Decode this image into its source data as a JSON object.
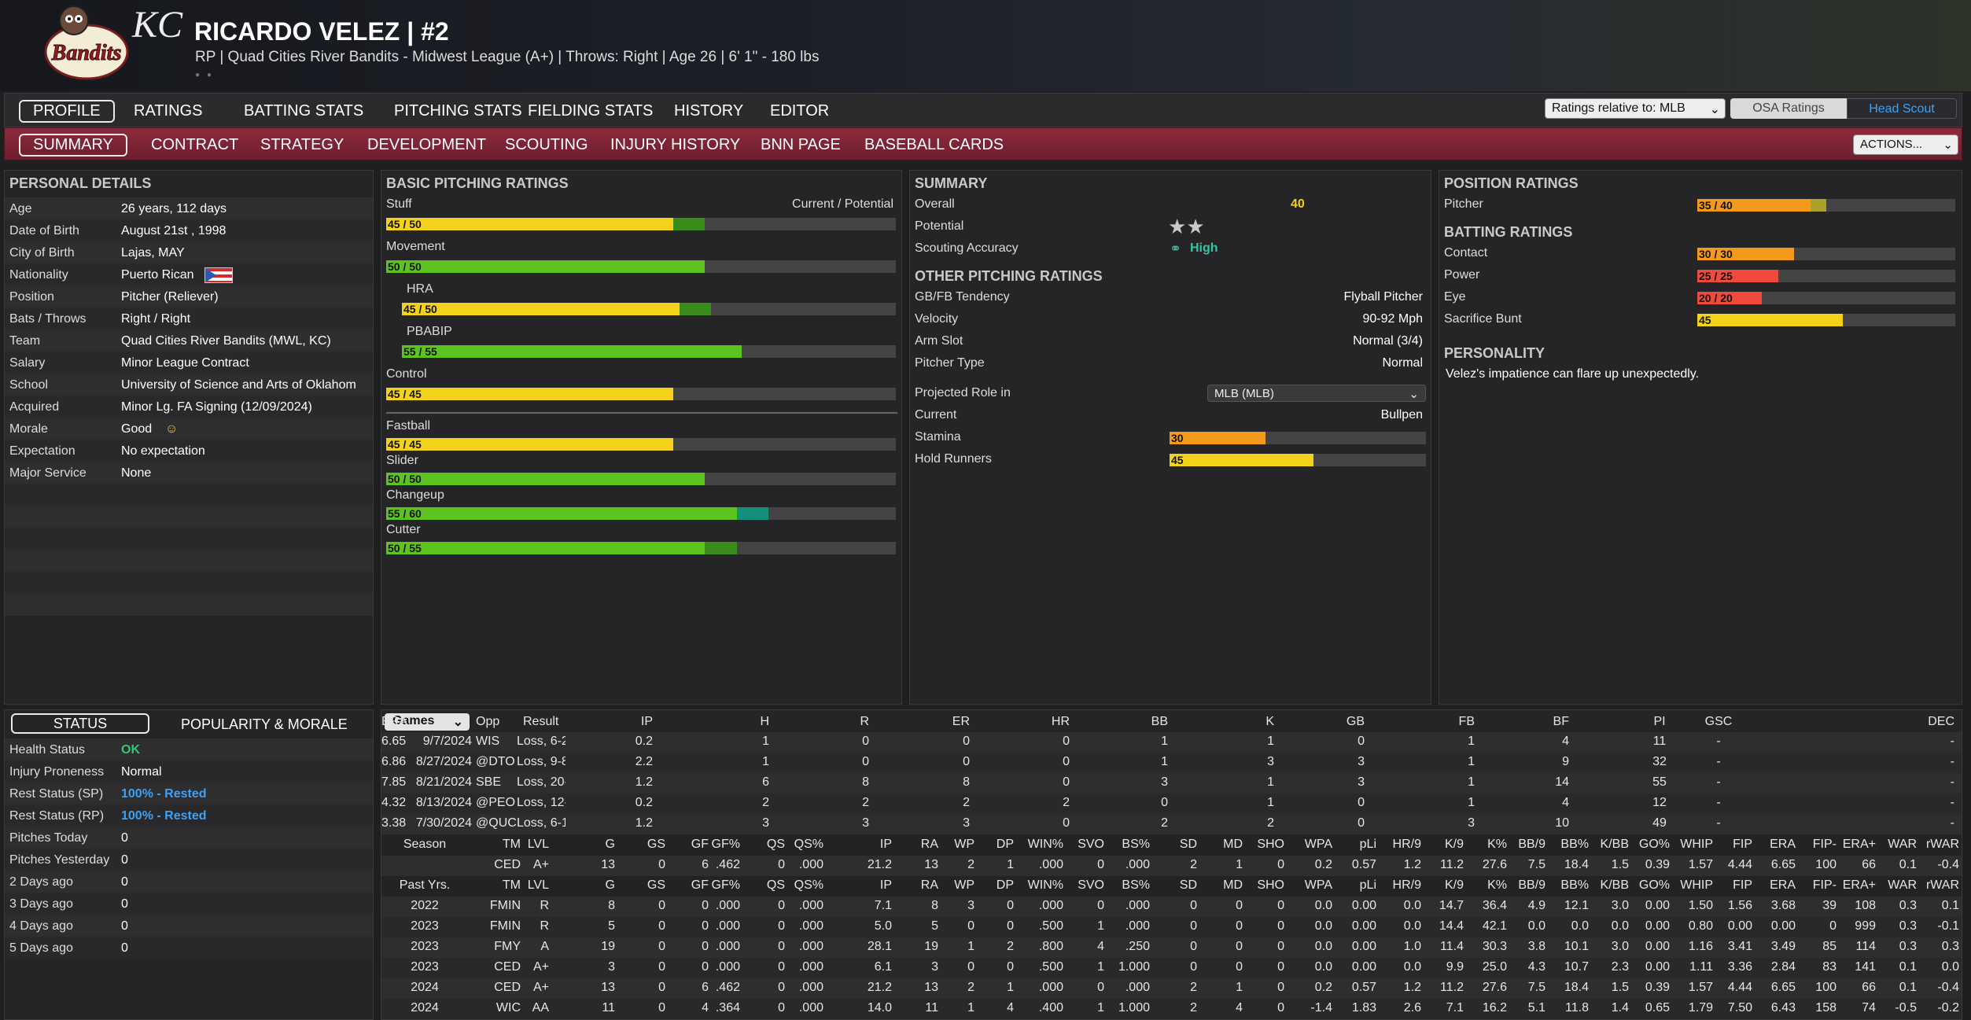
{
  "header": {
    "name_number": "RICARDO VELEZ  |  #2",
    "subtitle": "RP | Quad Cities River Bandits - Midwest League (A+)  |  Throws: Right  |  Age 26  |  6' 1\" - 180 lbs",
    "team_logo_text": "Bandits",
    "parent_logo_text": "KC"
  },
  "nav1": {
    "tabs": [
      "PROFILE",
      "RATINGS",
      "BATTING STATS",
      "PITCHING STATS",
      "FIELDING STATS",
      "HISTORY",
      "EDITOR"
    ],
    "ratings_relative": "Ratings relative to: MLB",
    "osa": "OSA Ratings",
    "scout": "Head Scout"
  },
  "nav2": {
    "tabs": [
      "SUMMARY",
      "CONTRACT",
      "STRATEGY",
      "DEVELOPMENT",
      "SCOUTING",
      "INJURY HISTORY",
      "BNN PAGE",
      "BASEBALL CARDS"
    ],
    "actions": "ACTIONS..."
  },
  "personal": {
    "title": "PERSONAL DETAILS",
    "rows": [
      {
        "label": "Age",
        "value": "26 years, 112 days"
      },
      {
        "label": "Date of Birth",
        "value": "August 21st , 1998"
      },
      {
        "label": "City of Birth",
        "value": "Lajas, MAY"
      },
      {
        "label": "Nationality",
        "value": "Puerto Rican"
      },
      {
        "label": "Position",
        "value": "Pitcher (Reliever)"
      },
      {
        "label": "Bats / Throws",
        "value": "Right / Right"
      },
      {
        "label": "Team",
        "value": "Quad Cities River Bandits (MWL, KC)"
      },
      {
        "label": "Salary",
        "value": "Minor League Contract"
      },
      {
        "label": "School",
        "value": "University of Science and Arts of Oklahom"
      },
      {
        "label": "Acquired",
        "value": "Minor Lg. FA Signing (12/09/2024)"
      },
      {
        "label": "Morale",
        "value": "Good"
      },
      {
        "label": "Expectation",
        "value": "No expectation"
      },
      {
        "label": "Major Service",
        "value": "None"
      }
    ]
  },
  "basic": {
    "title": "BASIC PITCHING RATINGS",
    "cp": "Current / Potential",
    "rows": [
      {
        "label": "Stuff",
        "text": "45 / 50",
        "cur": 45,
        "pot": 50,
        "color": "yel",
        "indent": false
      },
      {
        "label": "Movement",
        "text": "50 / 50",
        "cur": 50,
        "pot": 50,
        "color": "grn",
        "indent": false
      },
      {
        "label": "HRA",
        "text": "45 / 50",
        "cur": 45,
        "pot": 50,
        "color": "yel",
        "indent": true
      },
      {
        "label": "PBABIP",
        "text": "55 / 55",
        "cur": 55,
        "pot": 55,
        "color": "grn",
        "indent": true
      },
      {
        "label": "Control",
        "text": "45 / 45",
        "cur": 45,
        "pot": 45,
        "color": "yel",
        "indent": false
      },
      {
        "label": "Fastball",
        "text": "45 / 45",
        "cur": 45,
        "pot": 45,
        "color": "yel",
        "indent": false
      },
      {
        "label": "Slider",
        "text": "50 / 50",
        "cur": 50,
        "pot": 50,
        "color": "grn",
        "indent": false
      },
      {
        "label": "Changeup",
        "text": "55 / 60",
        "cur": 55,
        "pot": 60,
        "color": "grn",
        "indent": false
      },
      {
        "label": "Cutter",
        "text": "50 / 55",
        "cur": 50,
        "pot": 55,
        "color": "grn",
        "indent": false
      }
    ]
  },
  "summary": {
    "title": "SUMMARY",
    "overall_label": "Overall",
    "overall": "40",
    "potential_label": "Potential",
    "potential_stars": 2,
    "accuracy_label": "Scouting Accuracy",
    "accuracy": "High",
    "other_title": "OTHER PITCHING RATINGS",
    "other": [
      {
        "label": "GB/FB Tendency",
        "value": "Flyball Pitcher"
      },
      {
        "label": "Velocity",
        "value": "90-92 Mph"
      },
      {
        "label": "Arm Slot",
        "value": "Normal (3/4)"
      },
      {
        "label": "Pitcher Type",
        "value": "Normal"
      }
    ],
    "role_label": "Projected Role in",
    "role": "MLB (MLB)",
    "current_label": "Current",
    "current": "Bullpen",
    "stamina_label": "Stamina",
    "stamina": "30",
    "stamina_val": 30,
    "hold_label": "Hold Runners",
    "hold": "45",
    "hold_val": 45
  },
  "position": {
    "title": "POSITION RATINGS",
    "pitcher_label": "Pitcher",
    "pitcher": "35 / 40",
    "pitcher_cur": 35,
    "pitcher_pot": 40,
    "batting_title": "BATTING RATINGS",
    "batting": [
      {
        "label": "Contact",
        "text": "30 / 30",
        "val": 30,
        "color": "org"
      },
      {
        "label": "Power",
        "text": "25 / 25",
        "val": 25,
        "color": "red"
      },
      {
        "label": "Eye",
        "text": "20 / 20",
        "val": 20,
        "color": "red"
      },
      {
        "label": "Sacrifice Bunt",
        "text": "45",
        "val": 45,
        "color": "yel"
      }
    ],
    "personality_title": "PERSONALITY",
    "personality": "Velez's impatience can flare up unexpectedly."
  },
  "status": {
    "tab1": "STATUS",
    "tab2": "POPULARITY & MORALE",
    "rows": [
      {
        "label": "Health Status",
        "value": "OK",
        "cls": "ok"
      },
      {
        "label": "Injury Proneness",
        "value": "Normal",
        "cls": ""
      },
      {
        "label": "Rest Status (SP)",
        "value": "100% - Rested",
        "cls": "blue"
      },
      {
        "label": "Rest Status (RP)",
        "value": "100% - Rested",
        "cls": "blue"
      },
      {
        "label": "Pitches Today",
        "value": "0",
        "cls": ""
      },
      {
        "label": "Pitches Yesterday",
        "value": "0",
        "cls": ""
      },
      {
        "label": "2 Days ago",
        "value": "0",
        "cls": ""
      },
      {
        "label": "3 Days ago",
        "value": "0",
        "cls": ""
      },
      {
        "label": "4 Days ago",
        "value": "0",
        "cls": ""
      },
      {
        "label": "5 Days ago",
        "value": "0",
        "cls": ""
      }
    ]
  },
  "games": {
    "dropdown": "Games",
    "headers": [
      "Opp",
      "Result",
      "IP",
      "H",
      "R",
      "ER",
      "HR",
      "BB",
      "K",
      "GB",
      "FB",
      "BF",
      "PI",
      "GSC",
      "DEC",
      "ERA"
    ],
    "rows": [
      [
        "9/7/2024",
        "WIS",
        "Loss, 6-2",
        "0.2",
        "1",
        "0",
        "0",
        "0",
        "1",
        "1",
        "0",
        "1",
        "4",
        "11",
        "-",
        "-",
        "6.65"
      ],
      [
        "8/27/2024",
        "@DTO",
        "Loss, 9-8",
        "2.2",
        "1",
        "0",
        "0",
        "0",
        "1",
        "3",
        "3",
        "1",
        "9",
        "32",
        "-",
        "-",
        "6.86"
      ],
      [
        "8/21/2024",
        "SBE",
        "Loss, 20-",
        "1.2",
        "6",
        "8",
        "8",
        "0",
        "3",
        "1",
        "3",
        "1",
        "14",
        "55",
        "-",
        "-",
        "7.85"
      ],
      [
        "8/13/2024",
        "@PEO",
        "Loss, 12-",
        "0.2",
        "2",
        "2",
        "2",
        "2",
        "0",
        "1",
        "0",
        "1",
        "4",
        "12",
        "-",
        "-",
        "4.32"
      ],
      [
        "7/30/2024",
        "@QUC",
        "Loss, 6-1",
        "1.2",
        "3",
        "3",
        "3",
        "0",
        "2",
        "2",
        "0",
        "3",
        "10",
        "49",
        "-",
        "-",
        "3.38"
      ]
    ]
  },
  "seasons": {
    "season_headers": [
      "Season",
      "TM",
      "LVL",
      "G",
      "GS",
      "GF",
      "GF%",
      "QS",
      "QS%",
      "IP",
      "RA",
      "WP",
      "DP",
      "WIN%",
      "SVO",
      "BS%",
      "SD",
      "MD",
      "SHO",
      "WPA",
      "pLi",
      "HR/9",
      "K/9",
      "K%",
      "BB/9",
      "BB%",
      "K/BB",
      "GO%",
      "WHIP",
      "FIP",
      "ERA",
      "FIP-",
      "ERA+",
      "WAR",
      "rWAR"
    ],
    "season_row": [
      "",
      "CED",
      "A+",
      "13",
      "0",
      "6",
      ".462",
      "0",
      ".000",
      "21.2",
      "13",
      "2",
      "1",
      ".000",
      "0",
      ".000",
      "2",
      "1",
      "0",
      "0.2",
      "0.57",
      "1.2",
      "11.2",
      "27.6",
      "7.5",
      "18.4",
      "1.5",
      "0.39",
      "1.57",
      "4.44",
      "6.65",
      "100",
      "66",
      "0.1",
      "-0.4"
    ],
    "past_headers": [
      "Past Yrs.",
      "TM",
      "LVL",
      "G",
      "GS",
      "GF",
      "GF%",
      "QS",
      "QS%",
      "IP",
      "RA",
      "WP",
      "DP",
      "WIN%",
      "SVO",
      "BS%",
      "SD",
      "MD",
      "SHO",
      "WPA",
      "pLi",
      "HR/9",
      "K/9",
      "K%",
      "BB/9",
      "BB%",
      "K/BB",
      "GO%",
      "WHIP",
      "FIP",
      "ERA",
      "FIP-",
      "ERA+",
      "WAR",
      "rWAR"
    ],
    "past_rows": [
      [
        "2022",
        "FMIN",
        "R",
        "8",
        "0",
        "0",
        ".000",
        "0",
        ".000",
        "7.1",
        "8",
        "3",
        "0",
        ".000",
        "0",
        ".000",
        "0",
        "0",
        "0",
        "0.0",
        "0.00",
        "0.0",
        "14.7",
        "36.4",
        "4.9",
        "12.1",
        "3.0",
        "0.00",
        "1.50",
        "1.56",
        "3.68",
        "39",
        "108",
        "0.3",
        "0.1"
      ],
      [
        "2023",
        "FMIN",
        "R",
        "5",
        "0",
        "0",
        ".000",
        "0",
        ".000",
        "5.0",
        "5",
        "0",
        "0",
        ".500",
        "1",
        ".000",
        "0",
        "0",
        "0",
        "0.0",
        "0.00",
        "0.0",
        "14.4",
        "42.1",
        "0.0",
        "0.0",
        "0.0",
        "0.00",
        "0.80",
        "0.00",
        "0.00",
        "0",
        "999",
        "0.3",
        "-0.1"
      ],
      [
        "2023",
        "FMY",
        "A",
        "19",
        "0",
        "0",
        ".000",
        "0",
        ".000",
        "28.1",
        "19",
        "1",
        "2",
        ".800",
        "4",
        ".250",
        "0",
        "0",
        "0",
        "0.0",
        "0.00",
        "1.0",
        "11.4",
        "30.3",
        "3.8",
        "10.1",
        "3.0",
        "0.00",
        "1.16",
        "3.41",
        "3.49",
        "85",
        "114",
        "0.3",
        "0.3"
      ],
      [
        "2023",
        "CED",
        "A+",
        "3",
        "0",
        "0",
        ".000",
        "0",
        ".000",
        "6.1",
        "3",
        "0",
        "0",
        ".500",
        "1",
        "1.000",
        "0",
        "0",
        "0",
        "0.0",
        "0.00",
        "0.0",
        "9.9",
        "25.0",
        "4.3",
        "10.7",
        "2.3",
        "0.00",
        "1.11",
        "3.36",
        "2.84",
        "83",
        "141",
        "0.1",
        "0.0"
      ],
      [
        "2024",
        "CED",
        "A+",
        "13",
        "0",
        "6",
        ".462",
        "0",
        ".000",
        "21.2",
        "13",
        "2",
        "1",
        ".000",
        "0",
        ".000",
        "2",
        "1",
        "0",
        "0.2",
        "0.57",
        "1.2",
        "11.2",
        "27.6",
        "7.5",
        "18.4",
        "1.5",
        "0.39",
        "1.57",
        "4.44",
        "6.65",
        "100",
        "66",
        "0.1",
        "-0.4"
      ],
      [
        "2024",
        "WIC",
        "AA",
        "11",
        "0",
        "4",
        ".364",
        "0",
        ".000",
        "14.0",
        "11",
        "1",
        "4",
        ".400",
        "1",
        "1.000",
        "2",
        "4",
        "0",
        "-1.4",
        "1.83",
        "2.6",
        "7.1",
        "16.2",
        "5.1",
        "11.8",
        "1.4",
        "0.65",
        "1.79",
        "7.50",
        "6.43",
        "158",
        "74",
        "-0.5",
        "-0.2"
      ]
    ]
  },
  "colors": {
    "accent_yellow": "#f4d21c",
    "accent_green": "#5dc41f",
    "nav_red": "#8d2a3c",
    "ok": "#2ecc71",
    "link_blue": "#3da2f5"
  }
}
